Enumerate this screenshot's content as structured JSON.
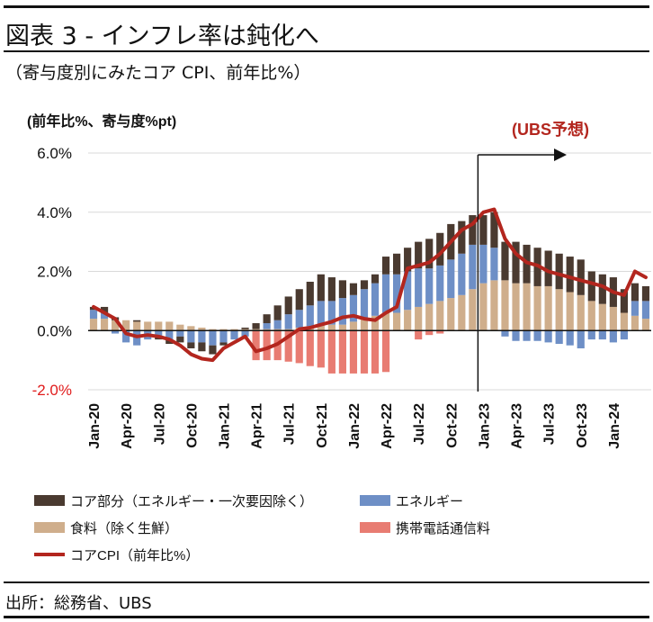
{
  "header": {
    "title": "図表 3 - インフレ率は鈍化へ",
    "subtitle": "（寄与度別にみたコア CPI、前年比%）"
  },
  "footer": {
    "source": "出所：総務省、UBS"
  },
  "colors": {
    "core_contrib": "#4a3a30",
    "energy": "#6e8fc6",
    "food": "#cfae8c",
    "mobile": "#e87c72",
    "core_cpi_line": "#b3261e",
    "forecast_label": "#b3261e",
    "negative_tick": "#e01b1b"
  },
  "chart_data": {
    "type": "bar",
    "unit_label": "(前年比%、寄与度%pt)",
    "forecast_label": "(UBS予想)",
    "forecast_start_index": 36,
    "ylim": [
      -2.0,
      6.0
    ],
    "yticks": [
      "6.0%",
      "4.0%",
      "2.0%",
      "0.0%",
      "-2.0%"
    ],
    "ytick_values": [
      6,
      4,
      2,
      0,
      -2
    ],
    "xtick_labels": [
      {
        "index": 0,
        "label": "Jan-20"
      },
      {
        "index": 3,
        "label": "Apr-20"
      },
      {
        "index": 6,
        "label": "Jul-20"
      },
      {
        "index": 9,
        "label": "Oct-20"
      },
      {
        "index": 12,
        "label": "Jan-21"
      },
      {
        "index": 15,
        "label": "Apr-21"
      },
      {
        "index": 18,
        "label": "Jul-21"
      },
      {
        "index": 21,
        "label": "Oct-21"
      },
      {
        "index": 24,
        "label": "Jan-22"
      },
      {
        "index": 27,
        "label": "Apr-22"
      },
      {
        "index": 30,
        "label": "Jul-22"
      },
      {
        "index": 33,
        "label": "Oct-22"
      },
      {
        "index": 36,
        "label": "Jan-23"
      },
      {
        "index": 39,
        "label": "Apr-23"
      },
      {
        "index": 42,
        "label": "Jul-23"
      },
      {
        "index": 45,
        "label": "Oct-23"
      },
      {
        "index": 48,
        "label": "Jan-24"
      }
    ],
    "n_periods": 52,
    "series": [
      {
        "name": "コア部分（エネルギー・一次要因除く）",
        "kind": "bar",
        "values": [
          0.1,
          0.2,
          0.1,
          0.0,
          0.05,
          0.0,
          -0.1,
          -0.15,
          -0.2,
          -0.2,
          -0.3,
          -0.3,
          -0.1,
          0.0,
          0.05,
          0.2,
          0.3,
          0.5,
          0.6,
          0.7,
          0.8,
          0.9,
          0.8,
          0.6,
          0.4,
          0.3,
          0.3,
          0.6,
          0.7,
          0.8,
          0.9,
          1.0,
          1.1,
          1.2,
          1.1,
          1.0,
          1.0,
          1.2,
          1.3,
          1.4,
          1.3,
          1.3,
          1.2,
          1.2,
          1.2,
          1.2,
          1.0,
          1.0,
          1.0,
          0.8,
          0.6,
          0.5
        ]
      },
      {
        "name": "食料（除く生鮮）",
        "kind": "bar",
        "values": [
          0.4,
          0.4,
          0.35,
          0.35,
          0.3,
          0.3,
          0.3,
          0.3,
          0.2,
          0.15,
          0.1,
          0.05,
          0.05,
          0.05,
          0.05,
          0.05,
          0.05,
          0.05,
          0.05,
          0.1,
          0.15,
          0.2,
          0.2,
          0.2,
          0.3,
          0.4,
          0.5,
          0.6,
          0.6,
          0.7,
          0.8,
          0.9,
          1.0,
          1.1,
          1.2,
          1.4,
          1.6,
          1.7,
          1.7,
          1.6,
          1.6,
          1.5,
          1.5,
          1.4,
          1.3,
          1.2,
          1.0,
          0.9,
          0.8,
          0.6,
          0.5,
          0.4
        ]
      },
      {
        "name": "エネルギー",
        "kind": "bar",
        "values": [
          0.3,
          0.2,
          -0.1,
          -0.4,
          -0.5,
          -0.3,
          -0.2,
          -0.3,
          -0.2,
          -0.4,
          -0.4,
          -0.5,
          -0.4,
          -0.3,
          -0.2,
          0.0,
          0.2,
          0.3,
          0.5,
          0.6,
          0.7,
          0.8,
          0.8,
          0.9,
          0.9,
          1.0,
          1.1,
          1.3,
          1.3,
          1.3,
          1.3,
          1.2,
          1.2,
          1.3,
          1.4,
          1.5,
          1.3,
          1.1,
          -0.2,
          -0.35,
          -0.35,
          -0.35,
          -0.4,
          -0.45,
          -0.5,
          -0.6,
          -0.3,
          -0.3,
          -0.4,
          -0.3,
          0.5,
          0.6
        ]
      },
      {
        "name": "携帯電話通信料",
        "kind": "bar",
        "values": [
          0,
          0,
          0,
          0,
          0,
          0,
          0,
          0,
          0,
          0,
          0,
          0,
          0,
          0,
          0,
          -1.0,
          -1.0,
          -1.0,
          -1.05,
          -1.1,
          -1.2,
          -1.25,
          -1.45,
          -1.45,
          -1.45,
          -1.45,
          -1.45,
          -1.4,
          0,
          0,
          -0.3,
          -0.15,
          -0.1,
          0,
          0,
          0,
          0,
          0,
          0,
          0,
          0,
          0,
          0,
          0,
          0,
          0,
          0,
          0,
          0,
          0,
          0,
          0
        ]
      },
      {
        "name": "コアCPI（前年比%）",
        "kind": "line",
        "values": [
          0.8,
          0.6,
          0.4,
          -0.1,
          -0.2,
          -0.15,
          -0.2,
          -0.3,
          -0.5,
          -0.8,
          -0.95,
          -1.0,
          -0.6,
          -0.4,
          -0.2,
          -0.7,
          -0.6,
          -0.45,
          -0.2,
          0.05,
          0.1,
          0.2,
          0.3,
          0.45,
          0.5,
          0.4,
          0.35,
          0.6,
          0.8,
          2.1,
          2.2,
          2.3,
          2.6,
          3.0,
          3.4,
          3.6,
          4.0,
          4.1,
          3.1,
          2.6,
          2.3,
          2.2,
          2.0,
          1.9,
          1.8,
          1.7,
          1.6,
          1.5,
          1.3,
          1.2,
          2.0,
          1.8
        ]
      }
    ],
    "legend": [
      {
        "series_index": 0,
        "kind": "bar"
      },
      {
        "series_index": 2,
        "kind": "bar"
      },
      {
        "series_index": 1,
        "kind": "bar"
      },
      {
        "series_index": 3,
        "kind": "bar"
      },
      {
        "series_index": 4,
        "kind": "line"
      }
    ],
    "legend_placement": "bottom"
  }
}
